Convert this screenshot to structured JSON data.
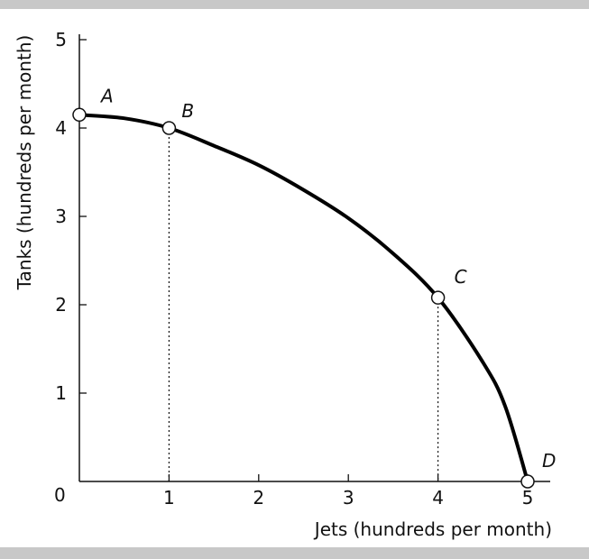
{
  "chart_data": {
    "type": "line",
    "title": "",
    "xlabel": "Jets (hundreds per month)",
    "ylabel": "Tanks (hundreds per month)",
    "xlim": [
      0,
      5
    ],
    "ylim": [
      0,
      5
    ],
    "origin_label": "0",
    "x_ticks": [
      "1",
      "2",
      "3",
      "4",
      "5"
    ],
    "y_ticks": [
      "1",
      "2",
      "3",
      "4",
      "5"
    ],
    "grid": false,
    "legend": "none",
    "curve_color": "#000000",
    "series": [
      {
        "x": [
          0,
          0.5,
          1,
          1.5,
          2,
          2.5,
          3,
          3.5,
          4,
          4.5,
          4.75,
          5
        ],
        "y": [
          4.15,
          4.11,
          4.0,
          3.8,
          3.58,
          3.3,
          2.98,
          2.58,
          2.08,
          1.35,
          0.85,
          0
        ]
      }
    ],
    "points": [
      {
        "label": "A",
        "x": 0,
        "y": 4.15
      },
      {
        "label": "B",
        "x": 1,
        "y": 4.0
      },
      {
        "label": "C",
        "x": 4,
        "y": 2.08
      },
      {
        "label": "D",
        "x": 5,
        "y": 0
      }
    ],
    "guides": [
      {
        "x": 1,
        "y": 4.0
      },
      {
        "x": 4,
        "y": 2.08
      }
    ]
  }
}
